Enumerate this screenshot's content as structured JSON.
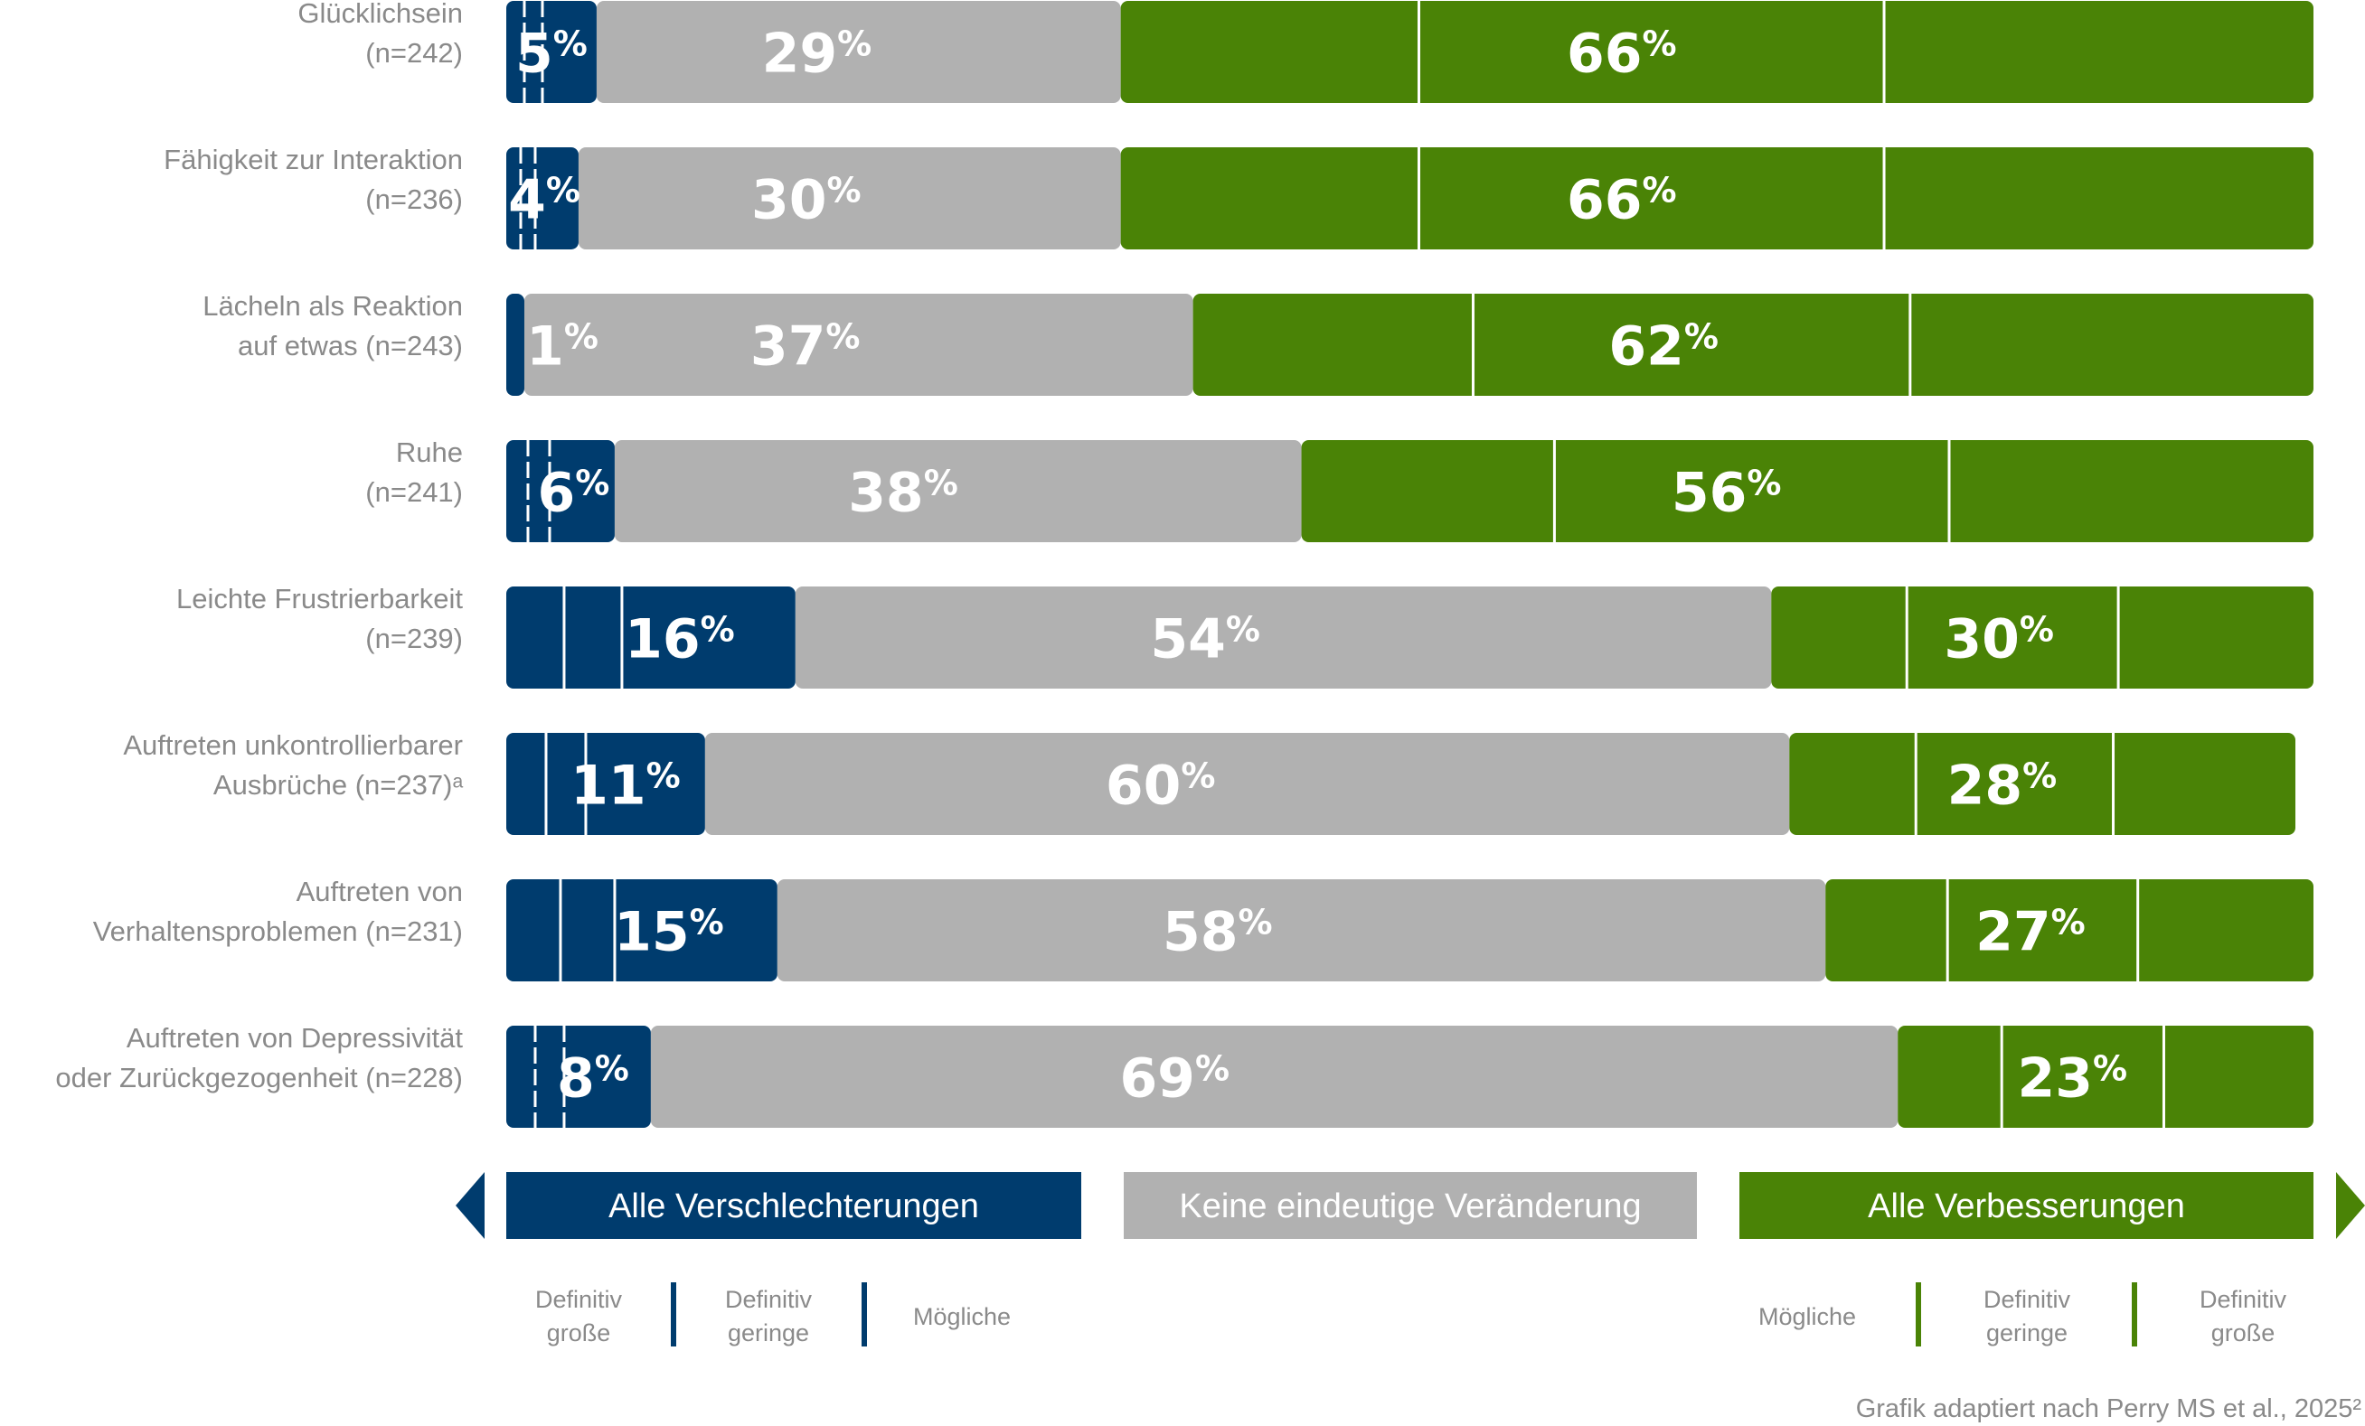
{
  "chart_data": {
    "type": "bar",
    "orientation": "horizontal",
    "stacked": true,
    "categories": [
      [
        "Glücklichsein",
        "(n=242)"
      ],
      [
        "Fähigkeit zur Interaktion",
        "(n=236)"
      ],
      [
        "Lächeln als Reaktion",
        "auf etwas (n=243)"
      ],
      [
        "Ruhe",
        "(n=241)"
      ],
      [
        "Leichte Frustrierbarkeit",
        "(n=239)"
      ],
      [
        "Auftreten unkontrollierbarer",
        "Ausbrüche (n=237)ᵃ"
      ],
      [
        "Auftreten von",
        "Verhaltensproblemen (n=231)"
      ],
      [
        "Auftreten von Depressivität",
        "oder Zurückgezogenheit (n=228)"
      ]
    ],
    "series": [
      {
        "name": "Alle Verschlechterungen",
        "values": [
          5,
          4,
          1,
          6,
          16,
          11,
          15,
          8
        ],
        "color": "#003c6e"
      },
      {
        "name": "Keine eindeutige Veränderung",
        "values": [
          29,
          30,
          37,
          38,
          54,
          60,
          58,
          69
        ],
        "color": "#b1b1b1"
      },
      {
        "name": "Alle Verbesserungen",
        "values": [
          66,
          66,
          62,
          56,
          30,
          28,
          27,
          23
        ],
        "color": "#4a8306"
      }
    ],
    "subsegment_labels": {
      "negative": [
        "Definitiv große",
        "Definitiv geringe",
        "Mögliche"
      ],
      "positive": [
        "Mögliche",
        "Definitiv geringe",
        "Definitiv große"
      ]
    },
    "source": "Grafik adaptiert nach Perry MS et al., 2025²"
  }
}
